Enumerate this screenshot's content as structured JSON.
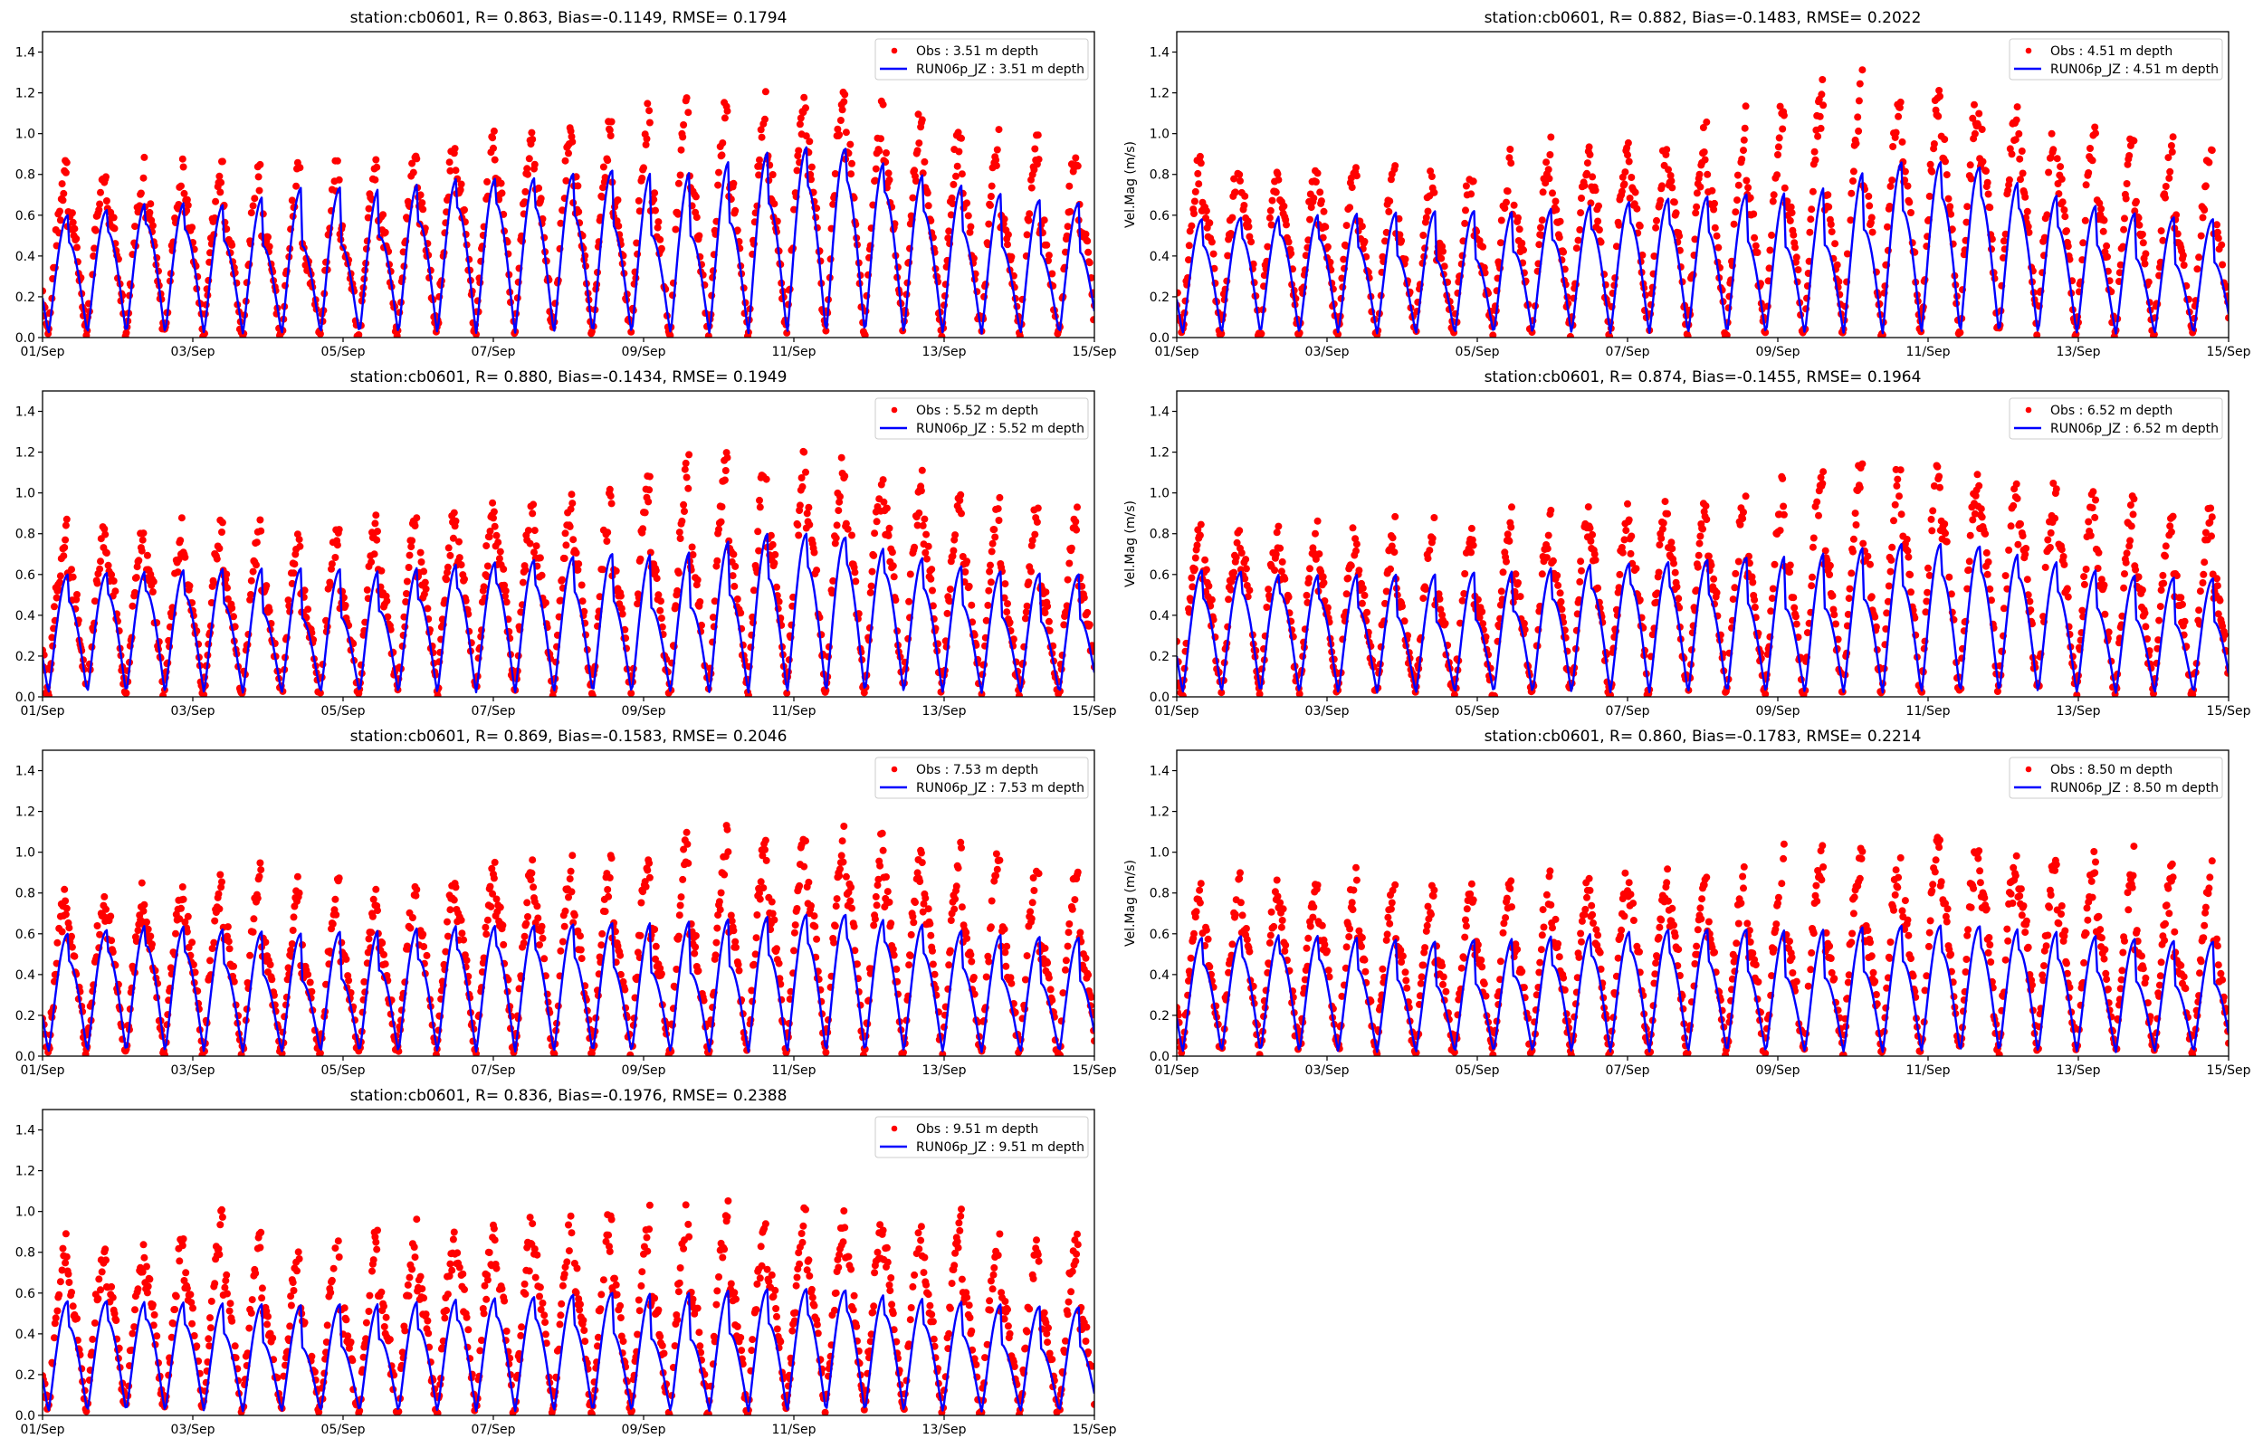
{
  "figure": {
    "station": "cb0601",
    "ylabel": "Vel.Mag (m/s)",
    "obs_color": "#ff0000",
    "model_color": "#0000ff"
  },
  "chart_data": [
    {
      "type": "scatter+line",
      "title": "station:cb0601, R= 0.863, Bias=-0.1149, RMSE= 0.1794",
      "R": 0.863,
      "Bias": -0.1149,
      "RMSE": 0.1794,
      "depth_m": 3.51,
      "legend": [
        "Obs : 3.51 m depth",
        "RUN06p_JZ : 3.51 m depth"
      ],
      "legend_position": "upper-right",
      "xlabel": "",
      "ylabel": "",
      "xlim": [
        "2000-09-01",
        "2000-09-15"
      ],
      "ylim": [
        0.0,
        1.5
      ],
      "xticks": [
        "01/Sep",
        "03/Sep",
        "05/Sep",
        "07/Sep",
        "09/Sep",
        "11/Sep",
        "13/Sep",
        "15/Sep"
      ],
      "yticks": [
        "0.0",
        "0.2",
        "0.4",
        "0.6",
        "0.8",
        "1.0",
        "1.2",
        "1.4"
      ],
      "series": [
        {
          "name": "Obs : 3.51 m depth",
          "kind": "scatter",
          "daily_peak": [
            0.8,
            0.78,
            0.84,
            0.78,
            0.88,
            0.93,
            0.98,
            1.01,
            1.17,
            1.12,
            1.15,
            1.05,
            0.98,
            0.9
          ],
          "floor": 0.0
        },
        {
          "name": "RUN06p_JZ : 3.51 m depth",
          "kind": "line",
          "daily_peak": [
            0.6,
            0.67,
            0.65,
            0.74,
            0.73,
            0.78,
            0.78,
            0.82,
            0.8,
            0.9,
            0.95,
            0.82,
            0.72,
            0.66
          ],
          "floor": 0.02
        }
      ]
    },
    {
      "type": "scatter+line",
      "title": "station:cb0601, R= 0.882, Bias=-0.1483, RMSE= 0.2022",
      "R": 0.882,
      "Bias": -0.1483,
      "RMSE": 0.2022,
      "depth_m": 4.51,
      "legend": [
        "Obs : 4.51 m depth",
        "RUN06p_JZ : 4.51 m depth"
      ],
      "legend_position": "upper-right",
      "xlabel": "",
      "ylabel": "Vel.Mag (m/s)",
      "xlim": [
        "2000-09-01",
        "2000-09-15"
      ],
      "ylim": [
        0.0,
        1.5
      ],
      "xticks": [
        "01/Sep",
        "03/Sep",
        "05/Sep",
        "07/Sep",
        "09/Sep",
        "11/Sep",
        "13/Sep",
        "15/Sep"
      ],
      "yticks": [
        "0.0",
        "0.2",
        "0.4",
        "0.6",
        "0.8",
        "1.0",
        "1.2",
        "1.4"
      ],
      "series": [
        {
          "name": "Obs : 4.51 m depth",
          "kind": "scatter",
          "daily_peak": [
            0.83,
            0.8,
            0.82,
            0.78,
            0.86,
            0.9,
            0.95,
            1.0,
            1.2,
            1.18,
            1.17,
            1.05,
            0.98,
            0.92
          ],
          "floor": 0.0
        },
        {
          "name": "RUN06p_JZ : 4.51 m depth",
          "kind": "line",
          "daily_peak": [
            0.58,
            0.6,
            0.61,
            0.62,
            0.62,
            0.65,
            0.68,
            0.7,
            0.72,
            0.86,
            0.86,
            0.72,
            0.62,
            0.58
          ],
          "floor": 0.02
        }
      ]
    },
    {
      "type": "scatter+line",
      "title": "station:cb0601, R= 0.880, Bias=-0.1434, RMSE= 0.1949",
      "R": 0.88,
      "Bias": -0.1434,
      "RMSE": 0.1949,
      "depth_m": 5.52,
      "legend": [
        "Obs : 5.52 m depth",
        "RUN06p_JZ : 5.52 m depth"
      ],
      "legend_position": "upper-right",
      "xlabel": "",
      "ylabel": "",
      "xlim": [
        "2000-09-01",
        "2000-09-15"
      ],
      "ylim": [
        0.0,
        1.5
      ],
      "xticks": [
        "01/Sep",
        "03/Sep",
        "05/Sep",
        "07/Sep",
        "09/Sep",
        "11/Sep",
        "13/Sep",
        "15/Sep"
      ],
      "yticks": [
        "0.0",
        "0.2",
        "0.4",
        "0.6",
        "0.8",
        "1.0",
        "1.2",
        "1.4"
      ],
      "series": [
        {
          "name": "Obs : 5.52 m depth",
          "kind": "scatter",
          "daily_peak": [
            0.8,
            0.78,
            0.82,
            0.78,
            0.84,
            0.88,
            0.92,
            0.95,
            1.13,
            1.1,
            1.12,
            1.03,
            0.96,
            0.88
          ],
          "floor": 0.0
        },
        {
          "name": "RUN06p_JZ : 5.52 m depth",
          "kind": "line",
          "daily_peak": [
            0.6,
            0.62,
            0.63,
            0.63,
            0.62,
            0.65,
            0.67,
            0.7,
            0.7,
            0.8,
            0.8,
            0.7,
            0.62,
            0.6
          ],
          "floor": 0.02
        }
      ]
    },
    {
      "type": "scatter+line",
      "title": "station:cb0601, R= 0.874, Bias=-0.1455, RMSE= 0.1964",
      "R": 0.874,
      "Bias": -0.1455,
      "RMSE": 0.1964,
      "depth_m": 6.52,
      "legend": [
        "Obs : 6.52 m depth",
        "RUN06p_JZ : 6.52 m depth"
      ],
      "legend_position": "upper-right",
      "xlabel": "",
      "ylabel": "Vel.Mag (m/s)",
      "xlim": [
        "2000-09-01",
        "2000-09-15"
      ],
      "ylim": [
        0.0,
        1.5
      ],
      "xticks": [
        "01/Sep",
        "03/Sep",
        "05/Sep",
        "07/Sep",
        "09/Sep",
        "11/Sep",
        "13/Sep",
        "15/Sep"
      ],
      "yticks": [
        "0.0",
        "0.2",
        "0.4",
        "0.6",
        "0.8",
        "1.0",
        "1.2",
        "1.4"
      ],
      "series": [
        {
          "name": "Obs : 6.52 m depth",
          "kind": "scatter",
          "daily_peak": [
            0.8,
            0.78,
            0.8,
            0.77,
            0.82,
            0.86,
            0.9,
            0.92,
            1.1,
            1.1,
            1.05,
            1.0,
            0.95,
            0.88
          ],
          "floor": 0.0
        },
        {
          "name": "RUN06p_JZ : 6.52 m depth",
          "kind": "line",
          "daily_peak": [
            0.62,
            0.6,
            0.6,
            0.6,
            0.62,
            0.65,
            0.66,
            0.68,
            0.7,
            0.75,
            0.75,
            0.68,
            0.6,
            0.58
          ],
          "floor": 0.02
        }
      ]
    },
    {
      "type": "scatter+line",
      "title": "station:cb0601, R= 0.869, Bias=-0.1583, RMSE= 0.2046",
      "R": 0.869,
      "Bias": -0.1583,
      "RMSE": 0.2046,
      "depth_m": 7.53,
      "legend": [
        "Obs : 7.53 m depth",
        "RUN06p_JZ : 7.53 m depth"
      ],
      "legend_position": "upper-right",
      "xlabel": "",
      "ylabel": "",
      "xlim": [
        "2000-09-01",
        "2000-09-15"
      ],
      "ylim": [
        0.0,
        1.5
      ],
      "xticks": [
        "01/Sep",
        "03/Sep",
        "05/Sep",
        "07/Sep",
        "09/Sep",
        "11/Sep",
        "13/Sep",
        "15/Sep"
      ],
      "yticks": [
        "0.0",
        "0.2",
        "0.4",
        "0.6",
        "0.8",
        "1.0",
        "1.2",
        "1.4"
      ],
      "series": [
        {
          "name": "Obs : 7.53 m depth",
          "kind": "scatter",
          "daily_peak": [
            0.76,
            0.78,
            0.9,
            0.78,
            0.8,
            0.84,
            0.88,
            0.9,
            1.03,
            1.0,
            1.04,
            0.98,
            0.95,
            0.88
          ],
          "floor": 0.0
        },
        {
          "name": "RUN06p_JZ : 7.53 m depth",
          "kind": "line",
          "daily_peak": [
            0.6,
            0.65,
            0.62,
            0.6,
            0.62,
            0.64,
            0.64,
            0.65,
            0.66,
            0.68,
            0.7,
            0.66,
            0.6,
            0.58
          ],
          "floor": 0.02
        }
      ]
    },
    {
      "type": "scatter+line",
      "title": "station:cb0601, R= 0.860, Bias=-0.1783, RMSE= 0.2214",
      "R": 0.86,
      "Bias": -0.1783,
      "RMSE": 0.2214,
      "depth_m": 8.5,
      "legend": [
        "Obs : 8.50 m depth",
        "RUN06p_JZ : 8.50 m depth"
      ],
      "legend_position": "upper-right",
      "xlabel": "",
      "ylabel": "Vel.Mag (m/s)",
      "xlim": [
        "2000-09-01",
        "2000-09-15"
      ],
      "ylim": [
        0.0,
        1.5
      ],
      "xticks": [
        "01/Sep",
        "03/Sep",
        "05/Sep",
        "07/Sep",
        "09/Sep",
        "11/Sep",
        "13/Sep",
        "15/Sep"
      ],
      "yticks": [
        "0.0",
        "0.2",
        "0.4",
        "0.6",
        "0.8",
        "1.0",
        "1.2",
        "1.4"
      ],
      "series": [
        {
          "name": "Obs : 8.50 m depth",
          "kind": "scatter",
          "daily_peak": [
            0.8,
            0.8,
            0.84,
            0.8,
            0.82,
            0.84,
            0.86,
            0.88,
            0.98,
            0.98,
            1.03,
            0.95,
            0.92,
            0.86
          ],
          "floor": 0.0
        },
        {
          "name": "RUN06p_JZ : 8.50 m depth",
          "kind": "line",
          "daily_peak": [
            0.58,
            0.6,
            0.58,
            0.56,
            0.58,
            0.6,
            0.62,
            0.62,
            0.62,
            0.64,
            0.64,
            0.62,
            0.58,
            0.56
          ],
          "floor": 0.02
        }
      ]
    },
    {
      "type": "scatter+line",
      "title": "station:cb0601, R= 0.836, Bias=-0.1976, RMSE= 0.2388",
      "R": 0.836,
      "Bias": -0.1976,
      "RMSE": 0.2388,
      "depth_m": 9.51,
      "legend": [
        "Obs : 9.51 m depth",
        "RUN06p_JZ : 9.51 m depth"
      ],
      "legend_position": "upper-right",
      "xlabel": "",
      "ylabel": "",
      "xlim": [
        "2000-09-01",
        "2000-09-15"
      ],
      "ylim": [
        0.0,
        1.5
      ],
      "xticks": [
        "01/Sep",
        "03/Sep",
        "05/Sep",
        "07/Sep",
        "09/Sep",
        "11/Sep",
        "13/Sep",
        "15/Sep"
      ],
      "yticks": [
        "0.0",
        "0.2",
        "0.4",
        "0.6",
        "0.8",
        "1.0",
        "1.2",
        "1.4"
      ],
      "series": [
        {
          "name": "Obs : 9.51 m depth",
          "kind": "scatter",
          "daily_peak": [
            0.8,
            0.78,
            0.92,
            0.8,
            0.84,
            0.88,
            0.9,
            0.92,
            0.97,
            0.96,
            0.92,
            0.9,
            0.9,
            0.82
          ],
          "floor": 0.0
        },
        {
          "name": "RUN06p_JZ : 9.51 m depth",
          "kind": "line",
          "daily_peak": [
            0.56,
            0.56,
            0.55,
            0.54,
            0.55,
            0.57,
            0.58,
            0.6,
            0.6,
            0.62,
            0.62,
            0.58,
            0.55,
            0.53
          ],
          "floor": 0.02
        }
      ]
    }
  ]
}
